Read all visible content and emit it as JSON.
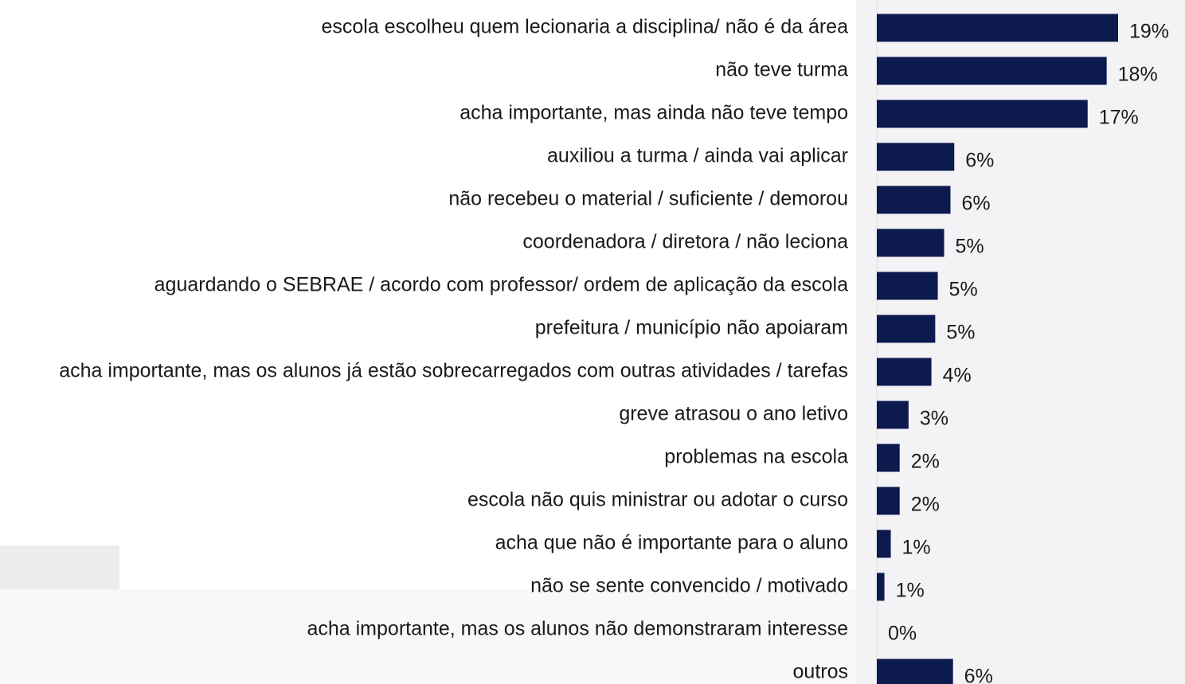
{
  "chart_data": {
    "type": "bar",
    "orientation": "horizontal",
    "color": "#0c1a4e",
    "categories": [
      "escola escolheu quem lecionaria a disciplina/ não é da área",
      "não teve turma",
      "acha importante, mas ainda não teve tempo",
      "auxiliou a turma / ainda vai aplicar",
      "não recebeu o material / suficiente / demorou",
      "coordenadora / diretora / não leciona",
      "aguardando o SEBRAE / acordo com professor/ ordem de aplicação da escola",
      "prefeitura / município não apoiaram",
      "acha importante, mas os alunos já estão sobrecarregados com outras atividades / tarefas",
      "greve atrasou o ano letivo",
      "problemas na escola",
      "escola não quis ministrar ou adotar o curso",
      "acha que não é importante para o aluno",
      "não se sente convencido / motivado",
      "acha importante, mas os alunos não demonstraram interesse",
      "outros"
    ],
    "values": [
      19,
      18.1,
      16.6,
      6.1,
      5.8,
      5.3,
      4.8,
      4.6,
      4.3,
      2.5,
      1.8,
      1.8,
      1.1,
      0.6,
      0,
      6
    ],
    "value_labels": [
      "19%",
      "18%",
      "17%",
      "6%",
      "6%",
      "5%",
      "5%",
      "5%",
      "4%",
      "3%",
      "2%",
      "2%",
      "1%",
      "1%",
      "0%",
      "6%"
    ]
  }
}
